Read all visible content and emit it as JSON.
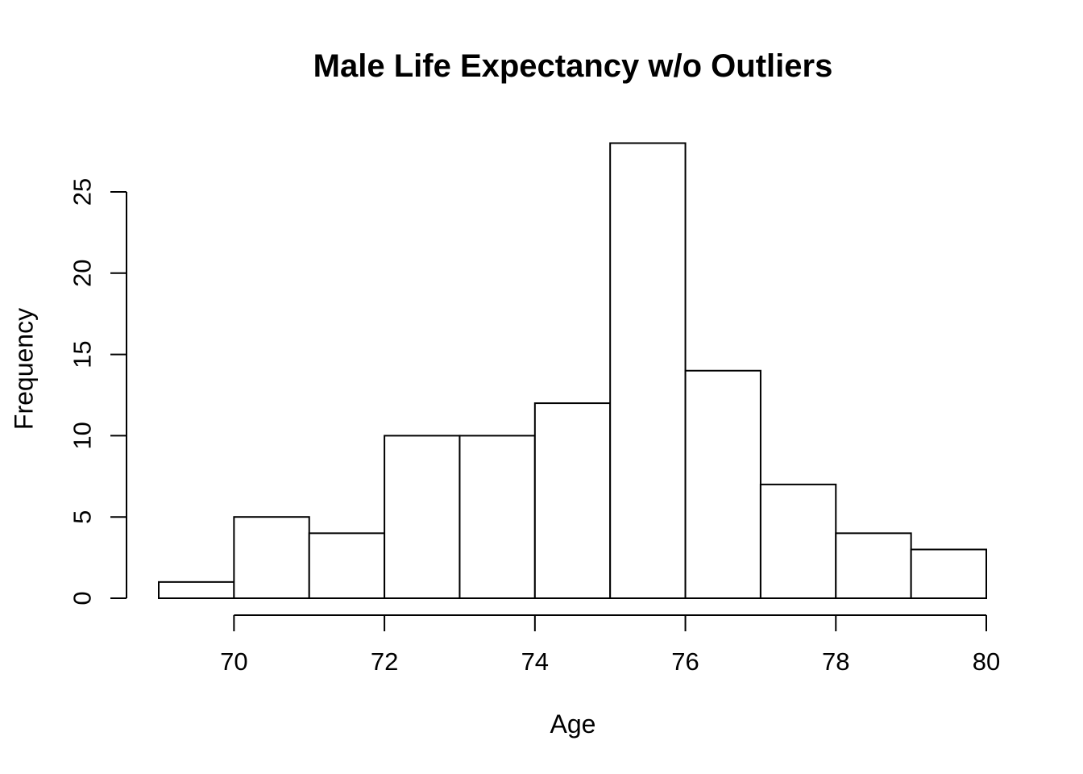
{
  "chart_data": {
    "type": "bar",
    "subtype": "histogram",
    "title": "Male Life Expectancy w/o Outliers",
    "xlabel": "Age",
    "ylabel": "Frequency",
    "bin_edges": [
      69,
      70,
      71,
      72,
      73,
      74,
      75,
      76,
      77,
      78,
      79,
      80
    ],
    "counts": [
      1,
      5,
      4,
      10,
      10,
      12,
      28,
      14,
      7,
      4,
      3
    ],
    "x_ticks": [
      70,
      72,
      74,
      76,
      78,
      80
    ],
    "y_ticks": [
      0,
      5,
      10,
      15,
      20,
      25
    ],
    "xlim": [
      69,
      80
    ],
    "ylim": [
      0,
      28
    ],
    "grid": false,
    "legend": false,
    "colors": {
      "bar_fill": "#ffffff",
      "bar_stroke": "#000000",
      "axis": "#000000",
      "text": "#000000",
      "background": "#ffffff"
    }
  }
}
